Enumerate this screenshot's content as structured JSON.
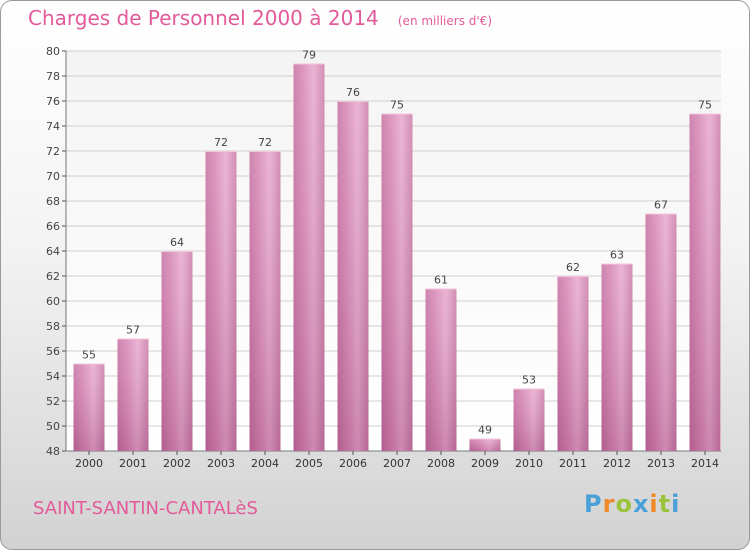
{
  "chart_data": {
    "type": "bar",
    "title": "Charges de Personnel 2000 à 2014",
    "subtitle": "(en milliers d'€)",
    "categories": [
      "2000",
      "2001",
      "2002",
      "2003",
      "2004",
      "2005",
      "2006",
      "2007",
      "2008",
      "2009",
      "2010",
      "2011",
      "2012",
      "2013",
      "2014"
    ],
    "values": [
      55,
      57,
      64,
      72,
      72,
      79,
      76,
      75,
      61,
      49,
      53,
      62,
      63,
      67,
      75
    ],
    "ylim": [
      48,
      80
    ],
    "yticks": [
      48,
      50,
      52,
      54,
      56,
      58,
      60,
      62,
      64,
      66,
      68,
      70,
      72,
      74,
      76,
      78,
      80
    ],
    "grid": true,
    "bar_color": "#d98ab8",
    "grid_color": "#d0d0d0"
  },
  "footer": {
    "place": "SAINT-SANTIN-CANTALèS",
    "logo": "Proxiti"
  },
  "colors": {
    "title": "#e35a9a",
    "logo_letters": [
      "#4aa0d8",
      "#f08a28",
      "#9ac43c",
      "#4aa0d8",
      "#f08a28",
      "#9ac43c",
      "#4aa0d8"
    ]
  }
}
